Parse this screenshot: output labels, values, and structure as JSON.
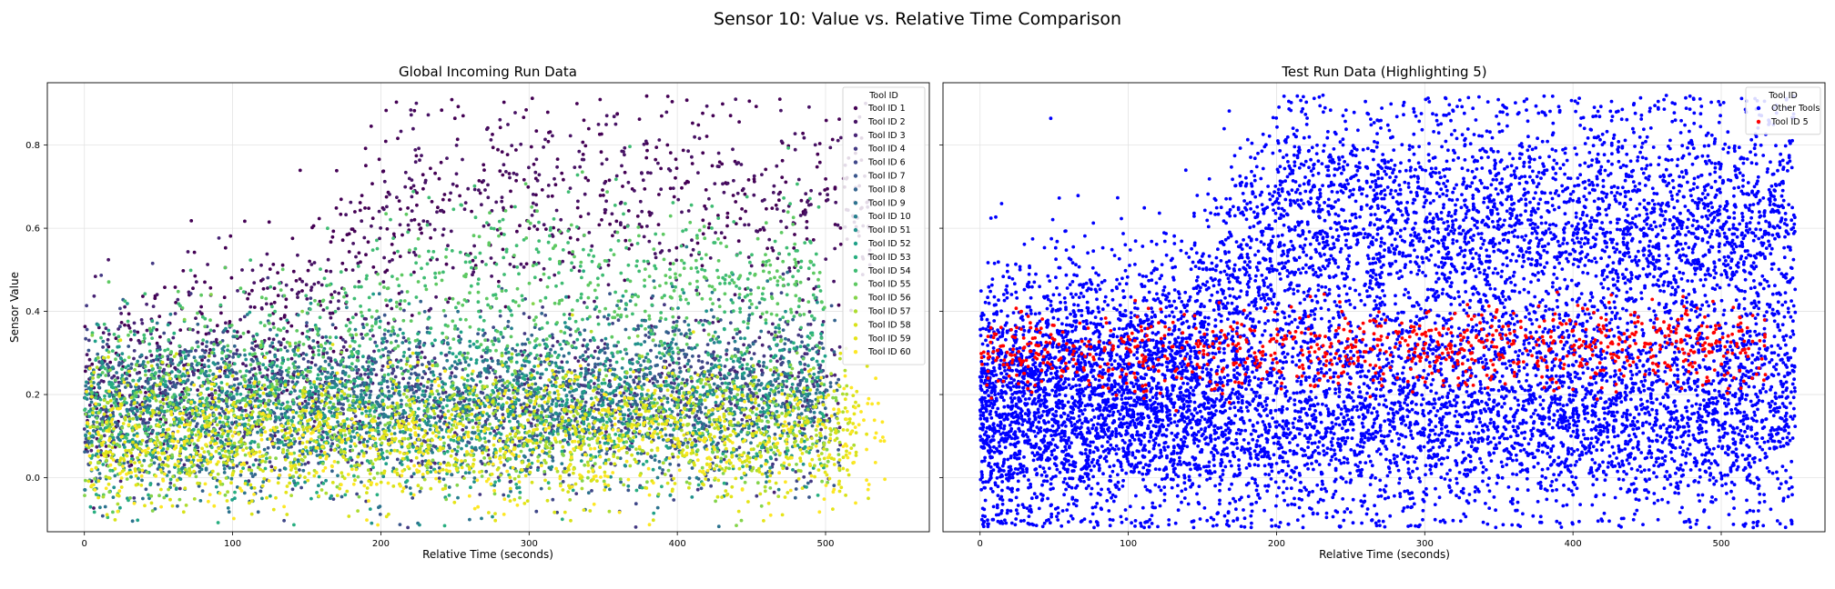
{
  "figure": {
    "suptitle": "Sensor 10: Value vs. Relative Time Comparison"
  },
  "chart_data": [
    {
      "type": "scatter",
      "title": "Global Incoming Run Data",
      "xlabel": "Relative Time (seconds)",
      "ylabel": "Sensor Value",
      "xlim": [
        -25,
        570
      ],
      "ylim": [
        -0.13,
        0.95
      ],
      "x_ticks": [
        0,
        100,
        200,
        300,
        400,
        500
      ],
      "y_ticks": [
        0.0,
        0.2,
        0.4,
        0.6,
        0.8
      ],
      "grid": true,
      "legend": {
        "title": "Tool ID",
        "placement": "top-right",
        "entries": [
          "Tool ID 1",
          "Tool ID 2",
          "Tool ID 3",
          "Tool ID 4",
          "Tool ID 6",
          "Tool ID 7",
          "Tool ID 8",
          "Tool ID 9",
          "Tool ID 10",
          "Tool ID 51",
          "Tool ID 52",
          "Tool ID 53",
          "Tool ID 54",
          "Tool ID 55",
          "Tool ID 56",
          "Tool ID 57",
          "Tool ID 58",
          "Tool ID 59",
          "Tool ID 60"
        ]
      },
      "series": [
        {
          "name": "Tool ID 1",
          "color": "#440154",
          "x_range": [
            0,
            530
          ],
          "ramp": [
            [
              0,
              0.25
            ],
            [
              150,
              0.42
            ],
            [
              200,
              0.68
            ],
            [
              530,
              0.7
            ]
          ],
          "spread": 0.12
        },
        {
          "name": "Tool ID 2",
          "color": "#471365",
          "x_range": [
            0,
            530
          ],
          "ramp": [
            [
              0,
              0.2
            ],
            [
              160,
              0.4
            ],
            [
              220,
              0.66
            ],
            [
              530,
              0.66
            ]
          ],
          "spread": 0.12
        },
        {
          "name": "Tool ID 3",
          "color": "#482475",
          "x_range": [
            0,
            510
          ],
          "ramp": [
            [
              0,
              0.2
            ],
            [
              530,
              0.22
            ]
          ],
          "spread": 0.1
        },
        {
          "name": "Tool ID 4",
          "color": "#443983",
          "x_range": [
            0,
            500
          ],
          "ramp": [
            [
              0,
              0.18
            ],
            [
              530,
              0.22
            ]
          ],
          "spread": 0.1
        },
        {
          "name": "Tool ID 6",
          "color": "#3f4788",
          "x_range": [
            0,
            500
          ],
          "ramp": [
            [
              0,
              0.17
            ],
            [
              530,
              0.2
            ]
          ],
          "spread": 0.1
        },
        {
          "name": "Tool ID 7",
          "color": "#39568c",
          "x_range": [
            0,
            510
          ],
          "ramp": [
            [
              0,
              0.16
            ],
            [
              530,
              0.2
            ]
          ],
          "spread": 0.1
        },
        {
          "name": "Tool ID 8",
          "color": "#33638d",
          "x_range": [
            0,
            510
          ],
          "ramp": [
            [
              0,
              0.15
            ],
            [
              530,
              0.22
            ]
          ],
          "spread": 0.1
        },
        {
          "name": "Tool ID 9",
          "color": "#2c728e",
          "x_range": [
            0,
            500
          ],
          "ramp": [
            [
              0,
              0.14
            ],
            [
              530,
              0.2
            ]
          ],
          "spread": 0.1
        },
        {
          "name": "Tool ID 10",
          "color": "#277f8e",
          "x_range": [
            0,
            500
          ],
          "ramp": [
            [
              0,
              0.14
            ],
            [
              530,
              0.22
            ]
          ],
          "spread": 0.1
        },
        {
          "name": "Tool ID 51",
          "color": "#21918c",
          "x_range": [
            0,
            500
          ],
          "ramp": [
            [
              0,
              0.15
            ],
            [
              530,
              0.2
            ]
          ],
          "spread": 0.1
        },
        {
          "name": "Tool ID 52",
          "color": "#1fa088",
          "x_range": [
            0,
            500
          ],
          "ramp": [
            [
              0,
              0.15
            ],
            [
              530,
              0.2
            ]
          ],
          "spread": 0.1
        },
        {
          "name": "Tool ID 53",
          "color": "#28ae80",
          "x_range": [
            0,
            500
          ],
          "ramp": [
            [
              0,
              0.14
            ],
            [
              530,
              0.18
            ]
          ],
          "spread": 0.1
        },
        {
          "name": "Tool ID 54",
          "color": "#3fbc73",
          "x_range": [
            0,
            500
          ],
          "ramp": [
            [
              0,
              0.2
            ],
            [
              140,
              0.28
            ],
            [
              220,
              0.48
            ],
            [
              520,
              0.48
            ]
          ],
          "spread": 0.11
        },
        {
          "name": "Tool ID 55",
          "color": "#5ec962",
          "x_range": [
            0,
            500
          ],
          "ramp": [
            [
              0,
              0.18
            ],
            [
              150,
              0.25
            ],
            [
              230,
              0.42
            ],
            [
              520,
              0.44
            ]
          ],
          "spread": 0.11
        },
        {
          "name": "Tool ID 56",
          "color": "#84d44b",
          "x_range": [
            0,
            510
          ],
          "ramp": [
            [
              0,
              0.12
            ],
            [
              530,
              0.14
            ]
          ],
          "spread": 0.09
        },
        {
          "name": "Tool ID 57",
          "color": "#addc30",
          "x_range": [
            0,
            520
          ],
          "ramp": [
            [
              0,
              0.1
            ],
            [
              530,
              0.12
            ]
          ],
          "spread": 0.08
        },
        {
          "name": "Tool ID 58",
          "color": "#d8e219",
          "x_range": [
            0,
            530
          ],
          "ramp": [
            [
              0,
              0.1
            ],
            [
              530,
              0.1
            ]
          ],
          "spread": 0.08
        },
        {
          "name": "Tool ID 59",
          "color": "#e5e419",
          "x_range": [
            0,
            530
          ],
          "ramp": [
            [
              0,
              0.08
            ],
            [
              530,
              0.1
            ]
          ],
          "spread": 0.08
        },
        {
          "name": "Tool ID 60",
          "color": "#fde725",
          "x_range": [
            0,
            540
          ],
          "ramp": [
            [
              0,
              0.08
            ],
            [
              530,
              0.1
            ]
          ],
          "spread": 0.08
        }
      ]
    },
    {
      "type": "scatter",
      "title": "Test Run Data (Highlighting 5)",
      "xlabel": "Relative Time (seconds)",
      "ylabel": "",
      "xlim": [
        -25,
        570
      ],
      "ylim": [
        -0.13,
        0.95
      ],
      "x_ticks": [
        0,
        100,
        200,
        300,
        400,
        500
      ],
      "y_ticks": [
        0.0,
        0.2,
        0.4,
        0.6,
        0.8
      ],
      "grid": true,
      "legend": {
        "title": "Tool ID",
        "placement": "top-right",
        "entries": [
          "Other Tools",
          "Tool ID 5"
        ]
      },
      "series": [
        {
          "name": "Other Tools",
          "color": "#0000ff",
          "x_range": [
            0,
            550
          ],
          "ramp": [
            [
              0,
              0.13
            ],
            [
              530,
              0.16
            ]
          ],
          "spread": 0.13
        },
        {
          "name": "Other Tools",
          "color": "#0000ff",
          "x_range": [
            0,
            550
          ],
          "ramp": [
            [
              0,
              0.2
            ],
            [
              140,
              0.3
            ],
            [
              200,
              0.6
            ],
            [
              530,
              0.6
            ]
          ],
          "spread": 0.15
        },
        {
          "name": "Tool ID 5",
          "color": "#ff0000",
          "x_range": [
            0,
            530
          ],
          "ramp": [
            [
              0,
              0.3
            ],
            [
              530,
              0.32
            ]
          ],
          "spread": 0.05
        }
      ]
    }
  ]
}
